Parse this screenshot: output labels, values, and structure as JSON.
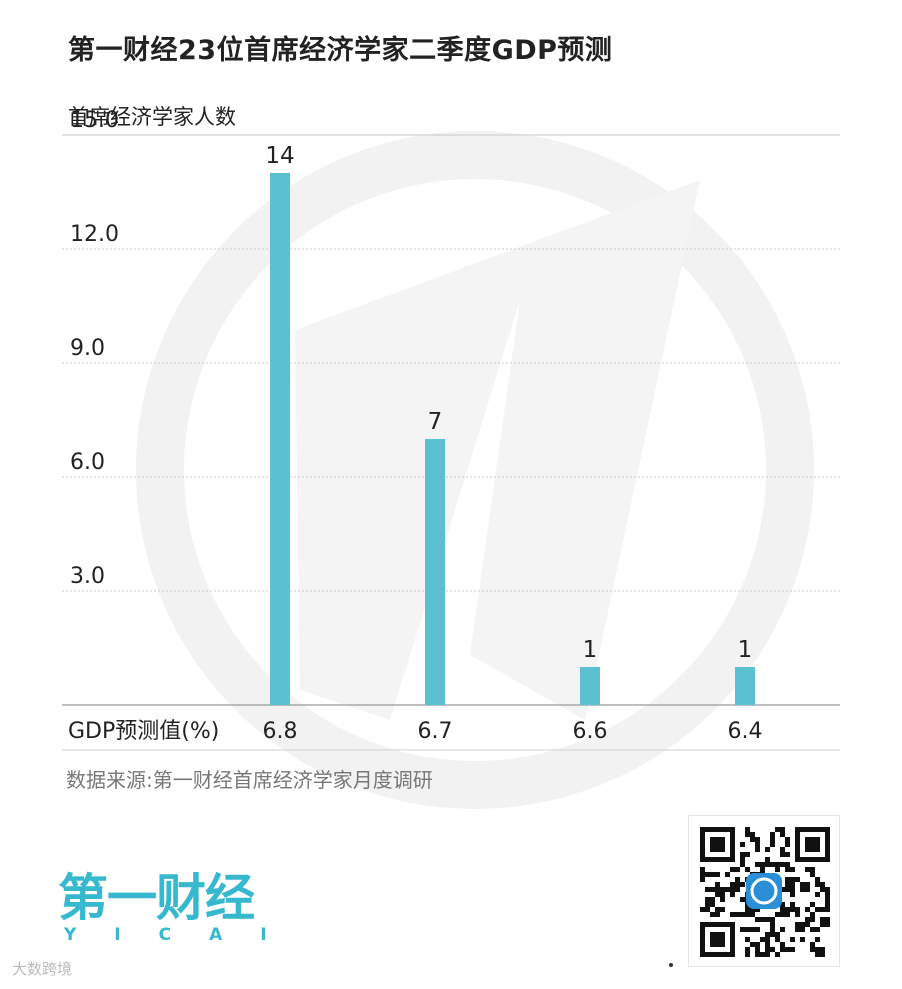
{
  "title": "第一财经23位首席经济学家二季度GDP预测",
  "source": "数据来源:第一财经首席经济学家月度调研",
  "logo": {
    "cn": "第一财经",
    "en": "YICAI"
  },
  "corner_mark": "大数跨境",
  "colors": {
    "bar": "#5bc0cf",
    "grid": "#c8c8c8",
    "axis": "#999999",
    "logo": "#36b9cf"
  },
  "icons": {
    "watermark": "yicai-logo-watermark",
    "qr": "qr-code-icon"
  },
  "chart_data": {
    "type": "bar",
    "title": "第一财经23位首席经济学家二季度GDP预测",
    "xlabel": "GDP预测值(%)",
    "ylabel": "首席经济学家人数",
    "categories": [
      "6.8",
      "6.7",
      "6.6",
      "6.4"
    ],
    "values": [
      14,
      7,
      1,
      1
    ],
    "data_labels": [
      "14",
      "7",
      "1",
      "1"
    ],
    "yticks": [
      "3.0",
      "6.0",
      "9.0",
      "12.0",
      "15.0"
    ],
    "ylim": [
      0,
      15
    ],
    "grid": true,
    "legend": "none"
  }
}
